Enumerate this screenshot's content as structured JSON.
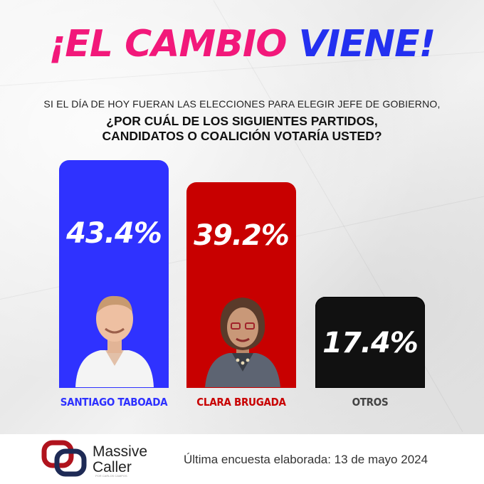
{
  "header": {
    "headline_part1": "¡EL CAMBIO",
    "headline_part2": "VIENE!",
    "subtitle": "SI EL DÍA DE HOY FUERAN LAS ELECCIONES PARA ELEGIR JEFE DE GOBIERNO,",
    "question_line1": "¿POR CUÁL DE LOS SIGUIENTES PARTIDOS,",
    "question_line2": "CANDIDATOS O COALICIÓN VOTARÍA USTED?"
  },
  "colors": {
    "pink": "#f2187a",
    "blue": "#2330f0",
    "taboada": "#2f32ff",
    "brugada": "#c80000",
    "otros": "#111111"
  },
  "chart_data": {
    "type": "bar",
    "categories": [
      "SANTIAGO TABOADA",
      "CLARA BRUGADA",
      "OTROS"
    ],
    "values": [
      43.4,
      39.2,
      17.4
    ],
    "value_labels": [
      "43.4%",
      "39.2%",
      "17.4%"
    ],
    "ylim": [
      0,
      43.4
    ],
    "grid": false
  },
  "footer": {
    "brand_line1": "Massive",
    "brand_line2": "Caller",
    "brand_tagline": "POR CARLOS CAMPOS",
    "note": "Última encuesta elaborada: 13 de mayo 2024"
  }
}
